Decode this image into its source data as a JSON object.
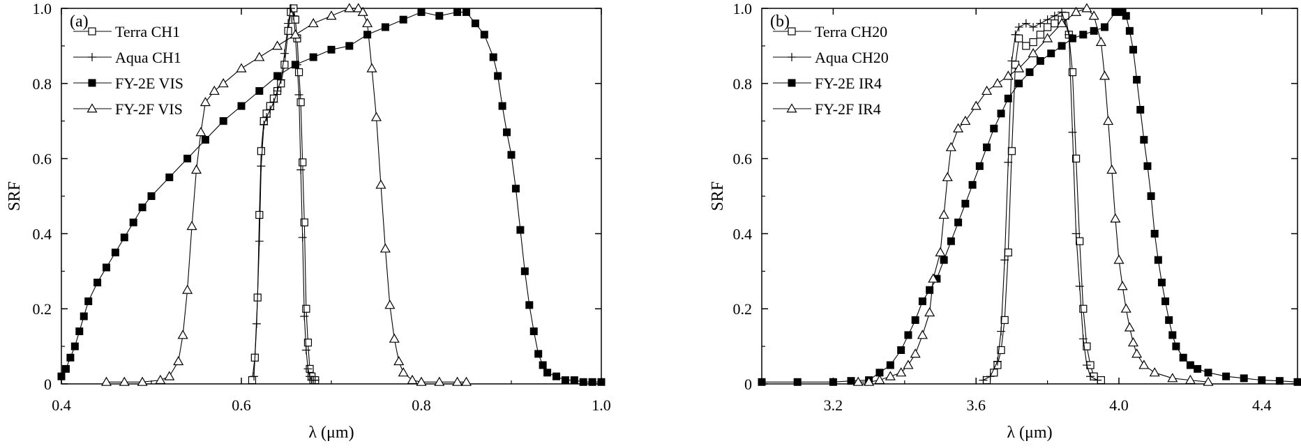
{
  "chart_data": [
    {
      "type": "line",
      "panel_label": "(a)",
      "xlabel": "λ (μm)",
      "ylabel": "SRF",
      "xlim": [
        0.4,
        1.0
      ],
      "ylim": [
        0,
        1.0
      ],
      "xticks": [
        0.4,
        0.6,
        0.8,
        1.0
      ],
      "xtick_labels": [
        "0.4",
        "0.6",
        "0.8",
        "1.0"
      ],
      "yticks": [
        0,
        0.2,
        0.4,
        0.6,
        0.8,
        1.0
      ],
      "ytick_labels": [
        "0",
        "0.2",
        "0.4",
        "0.6",
        "0.8",
        "1.0"
      ],
      "grid": false,
      "legend_position": "top-left",
      "series": [
        {
          "name": "Terra CH1",
          "marker": "open-square",
          "x": [
            0.612,
            0.615,
            0.618,
            0.62,
            0.622,
            0.625,
            0.628,
            0.632,
            0.636,
            0.64,
            0.644,
            0.648,
            0.652,
            0.655,
            0.658,
            0.66,
            0.662,
            0.664,
            0.666,
            0.668,
            0.67,
            0.672,
            0.674,
            0.676,
            0.678,
            0.68,
            0.682
          ],
          "y": [
            0.01,
            0.07,
            0.23,
            0.45,
            0.62,
            0.7,
            0.72,
            0.74,
            0.76,
            0.78,
            0.8,
            0.85,
            0.94,
            0.99,
            1.0,
            0.97,
            0.92,
            0.83,
            0.75,
            0.59,
            0.43,
            0.2,
            0.11,
            0.04,
            0.02,
            0.01,
            0.01
          ]
        },
        {
          "name": "Aqua CH1",
          "marker": "plus",
          "x": [
            0.614,
            0.617,
            0.62,
            0.622,
            0.625,
            0.628,
            0.632,
            0.636,
            0.64,
            0.644,
            0.648,
            0.652,
            0.655,
            0.658,
            0.66,
            0.662,
            0.664,
            0.666,
            0.668,
            0.67,
            0.672,
            0.674,
            0.676,
            0.678,
            0.68,
            0.682
          ],
          "y": [
            0.02,
            0.16,
            0.38,
            0.58,
            0.69,
            0.71,
            0.73,
            0.75,
            0.78,
            0.81,
            0.88,
            0.96,
            1.0,
            0.98,
            0.93,
            0.85,
            0.77,
            0.57,
            0.39,
            0.18,
            0.09,
            0.04,
            0.02,
            0.01,
            0.01,
            0.01
          ]
        },
        {
          "name": "FY-2E VIS",
          "marker": "filled-square",
          "x": [
            0.4,
            0.405,
            0.41,
            0.415,
            0.42,
            0.425,
            0.43,
            0.44,
            0.45,
            0.46,
            0.47,
            0.48,
            0.49,
            0.5,
            0.52,
            0.54,
            0.56,
            0.58,
            0.6,
            0.62,
            0.64,
            0.66,
            0.68,
            0.7,
            0.72,
            0.74,
            0.76,
            0.78,
            0.8,
            0.82,
            0.84,
            0.85,
            0.86,
            0.87,
            0.88,
            0.885,
            0.89,
            0.895,
            0.9,
            0.905,
            0.91,
            0.915,
            0.92,
            0.925,
            0.93,
            0.935,
            0.94,
            0.95,
            0.96,
            0.97,
            0.98,
            0.99,
            1.0
          ],
          "y": [
            0.02,
            0.04,
            0.07,
            0.1,
            0.14,
            0.18,
            0.22,
            0.27,
            0.31,
            0.35,
            0.39,
            0.43,
            0.47,
            0.5,
            0.55,
            0.6,
            0.65,
            0.7,
            0.74,
            0.78,
            0.82,
            0.85,
            0.87,
            0.89,
            0.9,
            0.93,
            0.95,
            0.97,
            0.99,
            0.98,
            0.99,
            0.99,
            0.96,
            0.93,
            0.87,
            0.82,
            0.74,
            0.67,
            0.61,
            0.52,
            0.41,
            0.3,
            0.21,
            0.14,
            0.08,
            0.05,
            0.03,
            0.02,
            0.01,
            0.01,
            0.005,
            0.005,
            0.005
          ]
        },
        {
          "name": "FY-2F VIS",
          "marker": "open-triangle",
          "x": [
            0.45,
            0.47,
            0.49,
            0.51,
            0.52,
            0.53,
            0.535,
            0.54,
            0.545,
            0.55,
            0.555,
            0.56,
            0.57,
            0.58,
            0.6,
            0.62,
            0.64,
            0.66,
            0.68,
            0.7,
            0.72,
            0.73,
            0.735,
            0.74,
            0.745,
            0.75,
            0.755,
            0.76,
            0.765,
            0.77,
            0.775,
            0.78,
            0.79,
            0.8,
            0.82,
            0.84,
            0.85
          ],
          "y": [
            0.005,
            0.005,
            0.005,
            0.01,
            0.02,
            0.06,
            0.13,
            0.25,
            0.42,
            0.57,
            0.67,
            0.75,
            0.78,
            0.8,
            0.84,
            0.87,
            0.9,
            0.93,
            0.96,
            0.98,
            1.0,
            1.0,
            0.99,
            0.96,
            0.84,
            0.71,
            0.53,
            0.36,
            0.21,
            0.12,
            0.06,
            0.03,
            0.01,
            0.005,
            0.005,
            0.005,
            0.005
          ]
        }
      ]
    },
    {
      "type": "line",
      "panel_label": "(b)",
      "xlabel": "λ (μm)",
      "ylabel": "SRF",
      "xlim": [
        3.0,
        4.5
      ],
      "ylim": [
        0,
        1.0
      ],
      "xticks": [
        3.2,
        3.6,
        4.0,
        4.4
      ],
      "xtick_labels": [
        "3.2",
        "3.6",
        "4.0",
        "4.4"
      ],
      "yticks": [
        0,
        0.2,
        0.4,
        0.6,
        0.8,
        1.0
      ],
      "ytick_labels": [
        "0",
        "0.2",
        "0.4",
        "0.6",
        "0.8",
        "1.0"
      ],
      "grid": false,
      "legend_position": "top-left",
      "series": [
        {
          "name": "Terra CH20",
          "marker": "open-square",
          "x": [
            3.63,
            3.65,
            3.66,
            3.67,
            3.68,
            3.69,
            3.7,
            3.71,
            3.72,
            3.74,
            3.76,
            3.78,
            3.8,
            3.82,
            3.84,
            3.85,
            3.86,
            3.87,
            3.88,
            3.89,
            3.9,
            3.91,
            3.92,
            3.93,
            3.95
          ],
          "y": [
            0.01,
            0.03,
            0.05,
            0.09,
            0.17,
            0.35,
            0.62,
            0.85,
            0.92,
            0.9,
            0.91,
            0.93,
            0.95,
            0.96,
            0.97,
            0.98,
            0.93,
            0.83,
            0.6,
            0.38,
            0.2,
            0.1,
            0.05,
            0.02,
            0.01
          ]
        },
        {
          "name": "Aqua CH20",
          "marker": "plus",
          "x": [
            3.62,
            3.64,
            3.66,
            3.67,
            3.68,
            3.69,
            3.7,
            3.71,
            3.72,
            3.74,
            3.76,
            3.78,
            3.8,
            3.82,
            3.84,
            3.86,
            3.87,
            3.88,
            3.89,
            3.9,
            3.91,
            3.92,
            3.94
          ],
          "y": [
            0.01,
            0.02,
            0.06,
            0.14,
            0.33,
            0.59,
            0.86,
            0.93,
            0.95,
            0.96,
            0.95,
            0.96,
            0.97,
            0.98,
            0.99,
            0.93,
            0.67,
            0.4,
            0.26,
            0.12,
            0.05,
            0.02,
            0.01
          ]
        },
        {
          "name": "FY-2E IR4",
          "marker": "filled-square",
          "x": [
            3.0,
            3.1,
            3.2,
            3.25,
            3.3,
            3.33,
            3.36,
            3.39,
            3.41,
            3.43,
            3.45,
            3.47,
            3.49,
            3.51,
            3.53,
            3.55,
            3.57,
            3.59,
            3.61,
            3.63,
            3.65,
            3.67,
            3.69,
            3.72,
            3.75,
            3.78,
            3.81,
            3.84,
            3.87,
            3.9,
            3.93,
            3.96,
            3.99,
            4.01,
            4.02,
            4.03,
            4.04,
            4.05,
            4.06,
            4.07,
            4.08,
            4.09,
            4.1,
            4.11,
            4.12,
            4.13,
            4.14,
            4.15,
            4.16,
            4.18,
            4.2,
            4.22,
            4.25,
            4.3,
            4.35,
            4.4,
            4.45,
            4.5
          ],
          "y": [
            0.005,
            0.005,
            0.005,
            0.008,
            0.01,
            0.03,
            0.05,
            0.09,
            0.13,
            0.17,
            0.22,
            0.25,
            0.28,
            0.33,
            0.38,
            0.43,
            0.48,
            0.53,
            0.58,
            0.63,
            0.68,
            0.72,
            0.76,
            0.8,
            0.83,
            0.86,
            0.88,
            0.9,
            0.92,
            0.93,
            0.94,
            0.95,
            0.99,
            0.99,
            0.98,
            0.94,
            0.89,
            0.81,
            0.73,
            0.65,
            0.58,
            0.5,
            0.4,
            0.33,
            0.27,
            0.22,
            0.17,
            0.13,
            0.1,
            0.07,
            0.05,
            0.04,
            0.03,
            0.02,
            0.015,
            0.01,
            0.008,
            0.005
          ]
        },
        {
          "name": "FY-2F IR4",
          "marker": "open-triangle",
          "x": [
            3.27,
            3.3,
            3.33,
            3.36,
            3.39,
            3.41,
            3.43,
            3.45,
            3.47,
            3.48,
            3.5,
            3.51,
            3.52,
            3.53,
            3.55,
            3.57,
            3.6,
            3.63,
            3.66,
            3.69,
            3.72,
            3.76,
            3.8,
            3.84,
            3.88,
            3.91,
            3.93,
            3.95,
            3.96,
            3.97,
            3.98,
            3.99,
            4.0,
            4.01,
            4.02,
            4.03,
            4.04,
            4.05,
            4.07,
            4.1,
            4.15,
            4.2,
            4.25
          ],
          "y": [
            0.005,
            0.005,
            0.01,
            0.02,
            0.03,
            0.05,
            0.08,
            0.13,
            0.19,
            0.28,
            0.35,
            0.45,
            0.55,
            0.63,
            0.68,
            0.7,
            0.74,
            0.78,
            0.8,
            0.82,
            0.84,
            0.88,
            0.92,
            0.96,
            0.99,
            1.0,
            0.98,
            0.91,
            0.82,
            0.7,
            0.57,
            0.44,
            0.33,
            0.26,
            0.2,
            0.15,
            0.11,
            0.08,
            0.05,
            0.03,
            0.015,
            0.01,
            0.005
          ]
        }
      ]
    }
  ]
}
